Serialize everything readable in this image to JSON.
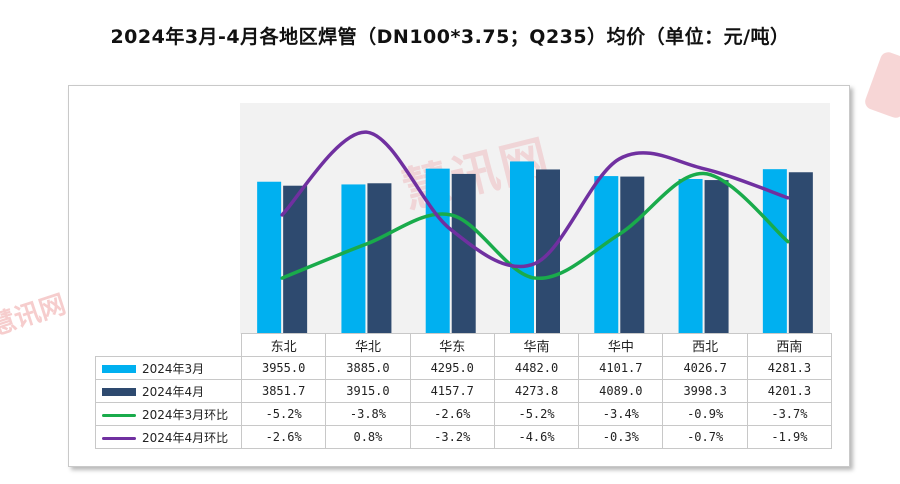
{
  "title": "2024年3月-4月各地区焊管（DN100*3.75；Q235）均价（单位：元/吨）",
  "watermark_text": "慧讯网",
  "colors": {
    "bar_march": "#00b0f0",
    "bar_april": "#2e4a6f",
    "line_march": "#19ab4b",
    "line_april": "#7030a0"
  },
  "chart_data": {
    "type": "bar",
    "categories": [
      "东北",
      "华北",
      "华东",
      "华南",
      "华中",
      "西北",
      "西南"
    ],
    "series": [
      {
        "name": "2024年3月",
        "kind": "bar",
        "values_display": [
          "3955.0",
          "3885.0",
          "4295.0",
          "4482.0",
          "4101.7",
          "4026.7",
          "4281.3"
        ],
        "values": [
          3955.0,
          3885.0,
          4295.0,
          4482.0,
          4101.7,
          4026.7,
          4281.3
        ]
      },
      {
        "name": "2024年4月",
        "kind": "bar",
        "values_display": [
          "3851.7",
          "3915.0",
          "4157.7",
          "4273.8",
          "4089.0",
          "3998.3",
          "4201.3"
        ],
        "values": [
          3851.7,
          3915.0,
          4157.7,
          4273.8,
          4089.0,
          3998.3,
          4201.3
        ]
      },
      {
        "name": "2024年3月环比",
        "kind": "line",
        "values_display": [
          "-5.2%",
          "-3.8%",
          "-2.6%",
          "-5.2%",
          "-3.4%",
          "-0.9%",
          "-3.7%"
        ],
        "values": [
          -5.2,
          -3.8,
          -2.6,
          -5.2,
          -3.4,
          -0.9,
          -3.7
        ]
      },
      {
        "name": "2024年4月环比",
        "kind": "line",
        "values_display": [
          "-2.6%",
          "0.8%",
          "-3.2%",
          "-4.6%",
          "-0.3%",
          "-0.7%",
          "-1.9%"
        ],
        "values": [
          -2.6,
          0.8,
          -3.2,
          -4.6,
          -0.3,
          -0.7,
          -1.9
        ]
      }
    ],
    "bar_axis_range": [
      0,
      6000
    ],
    "line_axis_range": [
      -7.5,
      2.0
    ],
    "grid": false,
    "legend": "bottom-table"
  }
}
